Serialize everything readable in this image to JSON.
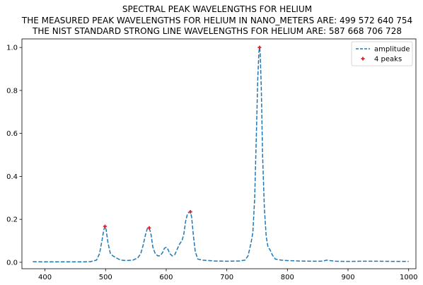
{
  "chart_data": {
    "type": "line",
    "title_lines": [
      "SPECTRAL PEAK WAVELENGTHS FOR HELIUM",
      "THE MEASURED PEAK WAVELENGTHS FOR HELIUM IN NANO_METERS ARE: 499 572 640 754",
      "THE NIST STANDARD STRONG LINE WAVELENGTHS FOR HELIUM ARE: 587 668 706 728"
    ],
    "xlabel": "",
    "ylabel": "",
    "xlim": [
      362,
      1012
    ],
    "ylim": [
      -0.03,
      1.04
    ],
    "x_ticks": [
      400,
      500,
      600,
      700,
      800,
      900,
      1000
    ],
    "y_ticks": [
      0.0,
      0.2,
      0.4,
      0.6,
      0.8,
      1.0
    ],
    "y_tick_labels": [
      "0.0",
      "0.2",
      "0.4",
      "0.6",
      "0.8",
      "1.0"
    ],
    "grid": false,
    "legend_position": "top-right",
    "colors": {
      "line": "#1f77b4",
      "peaks": "#d62728",
      "axes": "#000000"
    },
    "series": [
      {
        "name": "amplitude",
        "style": "dashed",
        "x": [
          380,
          400,
          420,
          440,
          460,
          475,
          485,
          490,
          494,
          497,
          499,
          501,
          504,
          508,
          512,
          518,
          525,
          535,
          545,
          553,
          558,
          562,
          566,
          569,
          572,
          575,
          578,
          582,
          586,
          590,
          594,
          597,
          600,
          603,
          606,
          610,
          614,
          618,
          622,
          626,
          629,
          632,
          635,
          638,
          640,
          642,
          645,
          648,
          652,
          660,
          680,
          700,
          720,
          730,
          735,
          740,
          743,
          746,
          749,
          751,
          753,
          754,
          755,
          757,
          759,
          762,
          765,
          768,
          771,
          775,
          780,
          790,
          800,
          820,
          840,
          855,
          860,
          865,
          870,
          880,
          900,
          920,
          950,
          980,
          1000
        ],
        "y": [
          0.003,
          0.002,
          0.002,
          0.002,
          0.002,
          0.003,
          0.01,
          0.04,
          0.1,
          0.15,
          0.167,
          0.15,
          0.09,
          0.04,
          0.03,
          0.02,
          0.01,
          0.008,
          0.01,
          0.02,
          0.04,
          0.08,
          0.13,
          0.158,
          0.16,
          0.13,
          0.07,
          0.04,
          0.03,
          0.03,
          0.045,
          0.065,
          0.07,
          0.06,
          0.04,
          0.03,
          0.035,
          0.06,
          0.085,
          0.1,
          0.13,
          0.19,
          0.225,
          0.235,
          0.235,
          0.21,
          0.12,
          0.05,
          0.015,
          0.01,
          0.006,
          0.005,
          0.006,
          0.01,
          0.03,
          0.09,
          0.14,
          0.3,
          0.62,
          0.85,
          0.98,
          1.0,
          0.98,
          0.8,
          0.5,
          0.25,
          0.12,
          0.07,
          0.06,
          0.035,
          0.015,
          0.01,
          0.008,
          0.006,
          0.005,
          0.005,
          0.007,
          0.01,
          0.008,
          0.005,
          0.004,
          0.005,
          0.005,
          0.004,
          0.004
        ]
      },
      {
        "name": "4 peaks",
        "style": "markers",
        "x": [
          499,
          572,
          640,
          754
        ],
        "y": [
          0.167,
          0.16,
          0.235,
          1.0
        ]
      }
    ]
  }
}
